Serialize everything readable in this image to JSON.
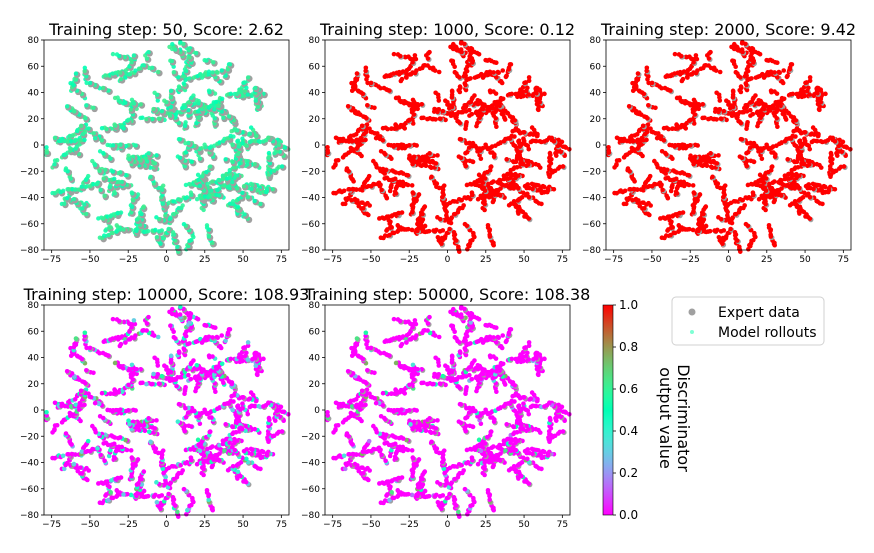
{
  "chart_data": [
    {
      "type": "scatter",
      "title": "Training step: 50, Score: 2.62",
      "xlim": [
        -80,
        80
      ],
      "ylim": [
        -80,
        80
      ],
      "xticks": [
        "−75",
        "−50",
        "−25",
        "0",
        "25",
        "50",
        "75"
      ],
      "yticks": [
        "80",
        "60",
        "40",
        "20",
        "0",
        "−20",
        "−40",
        "−60",
        "−80"
      ],
      "rollout_discriminator_value": 0.45,
      "expert_points": "grey circles spread over the whole embedding"
    },
    {
      "type": "scatter",
      "title": "Training step: 1000, Score: 0.12",
      "xlim": [
        -80,
        80
      ],
      "ylim": [
        -80,
        80
      ],
      "xticks": [
        "−75",
        "−50",
        "−25",
        "0",
        "25",
        "50",
        "75"
      ],
      "yticks": [
        "80",
        "60",
        "40",
        "20",
        "0",
        "−20",
        "−40",
        "−60",
        "−80"
      ],
      "rollout_discriminator_value": 1.0
    },
    {
      "type": "scatter",
      "title": "Training step: 2000, Score: 9.42",
      "xlim": [
        -80,
        80
      ],
      "ylim": [
        -80,
        80
      ],
      "xticks": [
        "−75",
        "−50",
        "−25",
        "0",
        "25",
        "50",
        "75"
      ],
      "yticks": [
        "80",
        "60",
        "40",
        "20",
        "0",
        "−20",
        "−40",
        "−60",
        "−80"
      ],
      "rollout_discriminator_value": 1.0
    },
    {
      "type": "scatter",
      "title": "Training step: 10000, Score: 108.93",
      "xlim": [
        -80,
        80
      ],
      "ylim": [
        -80,
        80
      ],
      "xticks": [
        "−75",
        "−50",
        "−25",
        "0",
        "25",
        "50",
        "75"
      ],
      "yticks": [
        "80",
        "60",
        "40",
        "20",
        "0",
        "−20",
        "−40",
        "−60",
        "−80"
      ],
      "rollout_discriminator_value": 0.0
    },
    {
      "type": "scatter",
      "title": "Training step: 50000, Score: 108.38",
      "xlim": [
        -80,
        80
      ],
      "ylim": [
        -80,
        80
      ],
      "xticks": [
        "−75",
        "−50",
        "−25",
        "0",
        "25",
        "50",
        "75"
      ],
      "yticks": [
        "80",
        "60",
        "40",
        "20",
        "0",
        "−20",
        "−40",
        "−60",
        "−80"
      ],
      "rollout_discriminator_value": 0.0
    }
  ],
  "colorbar": {
    "label_line1": "Discriminator",
    "label_line2": "output value",
    "range": [
      0.0,
      1.0
    ],
    "ticks": [
      "0.0",
      "0.2",
      "0.4",
      "0.6",
      "0.8",
      "1.0"
    ],
    "colormap": "rainbow"
  },
  "legend": {
    "expert_label": "Expert data",
    "rollout_label": "Model rollouts",
    "expert_color": "#a0a0a0",
    "rollout_color": "#7fffd4"
  }
}
